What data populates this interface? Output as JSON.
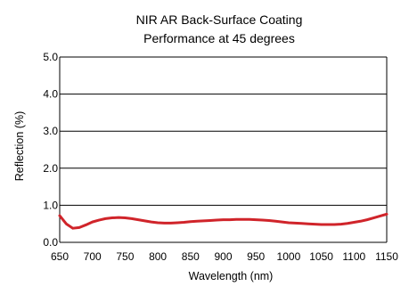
{
  "chart_data": {
    "type": "line",
    "title": "NIR AR Back-Surface Coating",
    "subtitle": "Performance at 45 degrees",
    "xlabel": "Wavelength (nm)",
    "ylabel": "Reflection (%)",
    "xlim": [
      650,
      1150
    ],
    "ylim": [
      0,
      5
    ],
    "xticks": [
      "650",
      "700",
      "750",
      "800",
      "850",
      "900",
      "950",
      "1000",
      "1050",
      "1100",
      "1150"
    ],
    "yticks": [
      "0.0",
      "1.0",
      "2.0",
      "3.0",
      "4.0",
      "5.0"
    ],
    "grid": "horizontal",
    "series": [
      {
        "color": "#d0242a",
        "points": [
          [
            650,
            0.72
          ],
          [
            660,
            0.5
          ],
          [
            670,
            0.38
          ],
          [
            680,
            0.4
          ],
          [
            690,
            0.47
          ],
          [
            700,
            0.55
          ],
          [
            710,
            0.6
          ],
          [
            720,
            0.64
          ],
          [
            730,
            0.66
          ],
          [
            740,
            0.67
          ],
          [
            750,
            0.66
          ],
          [
            760,
            0.64
          ],
          [
            770,
            0.61
          ],
          [
            780,
            0.58
          ],
          [
            790,
            0.55
          ],
          [
            800,
            0.53
          ],
          [
            810,
            0.52
          ],
          [
            820,
            0.52
          ],
          [
            830,
            0.53
          ],
          [
            840,
            0.54
          ],
          [
            850,
            0.56
          ],
          [
            860,
            0.57
          ],
          [
            870,
            0.58
          ],
          [
            880,
            0.59
          ],
          [
            890,
            0.6
          ],
          [
            900,
            0.61
          ],
          [
            910,
            0.61
          ],
          [
            920,
            0.62
          ],
          [
            930,
            0.62
          ],
          [
            940,
            0.62
          ],
          [
            950,
            0.61
          ],
          [
            960,
            0.6
          ],
          [
            970,
            0.59
          ],
          [
            980,
            0.57
          ],
          [
            990,
            0.55
          ],
          [
            1000,
            0.53
          ],
          [
            1010,
            0.52
          ],
          [
            1020,
            0.51
          ],
          [
            1030,
            0.5
          ],
          [
            1040,
            0.49
          ],
          [
            1050,
            0.48
          ],
          [
            1060,
            0.48
          ],
          [
            1070,
            0.48
          ],
          [
            1080,
            0.49
          ],
          [
            1090,
            0.51
          ],
          [
            1100,
            0.54
          ],
          [
            1110,
            0.57
          ],
          [
            1120,
            0.61
          ],
          [
            1130,
            0.66
          ],
          [
            1140,
            0.71
          ],
          [
            1150,
            0.76
          ]
        ]
      }
    ]
  }
}
